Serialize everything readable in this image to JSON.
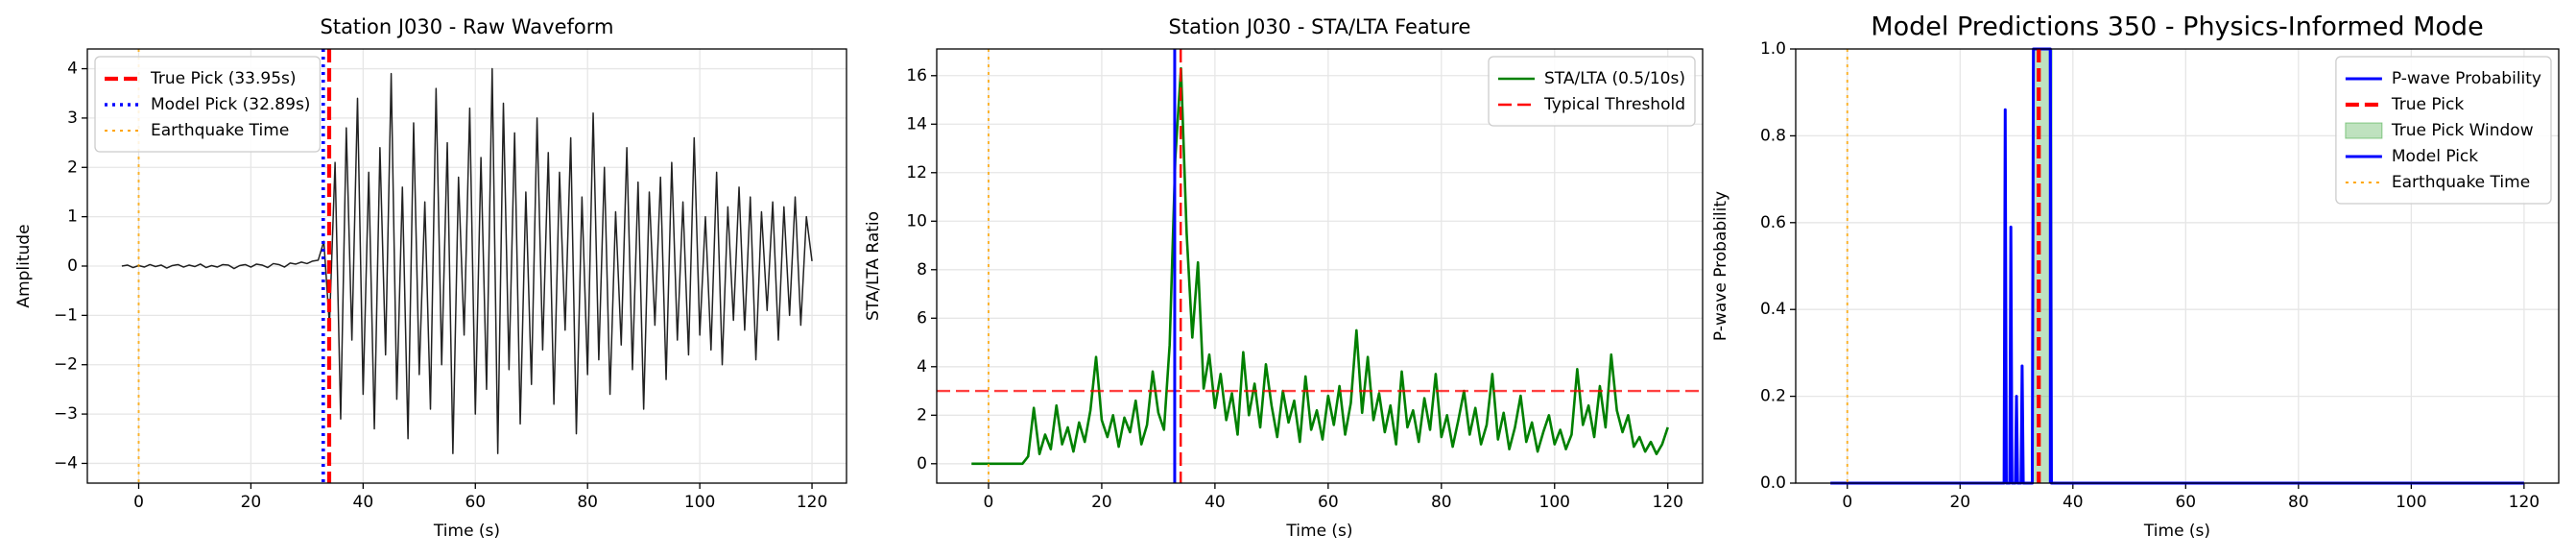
{
  "chart_data": [
    {
      "type": "line",
      "title": "Station J030 - Raw Waveform",
      "xlabel": "Time (s)",
      "ylabel": "Amplitude",
      "x": [
        -3,
        -2,
        -1,
        0,
        1,
        2,
        3,
        4,
        5,
        6,
        7,
        8,
        9,
        10,
        11,
        12,
        13,
        14,
        15,
        16,
        17,
        18,
        19,
        20,
        21,
        22,
        23,
        24,
        25,
        26,
        27,
        28,
        29,
        30,
        31,
        32,
        33,
        34,
        35,
        36,
        37,
        38,
        39,
        40,
        41,
        42,
        43,
        44,
        45,
        46,
        47,
        48,
        49,
        50,
        51,
        52,
        53,
        54,
        55,
        56,
        57,
        58,
        59,
        60,
        61,
        62,
        63,
        64,
        65,
        66,
        67,
        68,
        69,
        70,
        71,
        72,
        73,
        74,
        75,
        76,
        77,
        78,
        79,
        80,
        81,
        82,
        83,
        84,
        85,
        86,
        87,
        88,
        89,
        90,
        91,
        92,
        93,
        94,
        95,
        96,
        97,
        98,
        99,
        100,
        101,
        102,
        103,
        104,
        105,
        106,
        107,
        108,
        109,
        110,
        111,
        112,
        113,
        114,
        115,
        116,
        117,
        118,
        119,
        120
      ],
      "series": [
        {
          "color": "#222222",
          "values": [
            0,
            0.02,
            -0.03,
            0.01,
            -0.02,
            0.03,
            -0.01,
            0.02,
            -0.04,
            0.01,
            0.03,
            -0.02,
            0.02,
            -0.01,
            0.04,
            -0.03,
            0.01,
            -0.02,
            0.03,
            0.02,
            -0.05,
            0.01,
            0.03,
            -0.02,
            0.04,
            0.02,
            -0.03,
            0.05,
            0.03,
            -0.02,
            0.06,
            0.04,
            0.08,
            0.05,
            0.1,
            0.12,
            0.5,
            -1.2,
            2.1,
            -3.1,
            2.8,
            -1.5,
            3.4,
            -2.6,
            1.9,
            -3.3,
            2.4,
            -1.8,
            3.9,
            -2.7,
            1.6,
            -3.5,
            2.9,
            -2.2,
            1.3,
            -2.9,
            3.6,
            -2.0,
            2.5,
            -3.8,
            1.8,
            -1.4,
            3.2,
            -3.0,
            2.2,
            -2.5,
            4.0,
            -3.8,
            3.3,
            -2.1,
            2.7,
            -3.2,
            1.5,
            -2.4,
            3.0,
            -1.7,
            2.3,
            -2.8,
            1.9,
            -1.3,
            2.6,
            -3.4,
            1.4,
            -2.2,
            3.1,
            -1.9,
            2.0,
            -2.6,
            1.1,
            -1.6,
            2.4,
            -2.1,
            1.7,
            -2.9,
            1.5,
            -1.2,
            1.8,
            -2.3,
            2.1,
            -1.5,
            1.3,
            -1.8,
            2.6,
            -1.4,
            1.0,
            -1.7,
            1.9,
            -2.0,
            1.2,
            -1.1,
            1.6,
            -1.3,
            1.4,
            -1.9,
            1.1,
            -0.9,
            1.3,
            -1.5,
            1.2,
            -1.0,
            1.4,
            -1.2,
            1.0,
            0.1
          ],
          "style": "solid"
        }
      ],
      "references": [
        {
          "kind": "vline",
          "name": "True Pick (33.95s)",
          "x": 33.95,
          "color": "#ff0000",
          "style": "dashed"
        },
        {
          "kind": "vline",
          "name": "Model Pick (32.89s)",
          "x": 32.89,
          "color": "#0000ff",
          "style": "dotted"
        },
        {
          "kind": "vline",
          "name": "Earthquake Time",
          "x": 0,
          "color": "#ffa500",
          "style": "dotted"
        }
      ],
      "xlim": [
        -9.15,
        126.15
      ],
      "ylim": [
        -4.4,
        4.4
      ],
      "xticks": [
        0,
        20,
        40,
        60,
        80,
        100,
        120
      ],
      "yticks": [
        {
          "value": -4,
          "label": "−4"
        },
        {
          "value": -3,
          "label": "−3"
        },
        {
          "value": -2,
          "label": "−2"
        },
        {
          "value": -1,
          "label": "−1"
        },
        0,
        1,
        2,
        3,
        4
      ],
      "grid": true,
      "legend": "upper-left"
    },
    {
      "type": "line",
      "title": "Station J030 - STA/LTA Feature",
      "xlabel": "Time (s)",
      "ylabel": "STA/LTA Ratio",
      "x": [
        -3,
        -2,
        -1,
        0,
        1,
        2,
        3,
        4,
        5,
        6,
        7,
        8,
        9,
        10,
        11,
        12,
        13,
        14,
        15,
        16,
        17,
        18,
        19,
        20,
        21,
        22,
        23,
        24,
        25,
        26,
        27,
        28,
        29,
        30,
        31,
        32,
        33,
        34,
        35,
        36,
        37,
        38,
        39,
        40,
        41,
        42,
        43,
        44,
        45,
        46,
        47,
        48,
        49,
        50,
        51,
        52,
        53,
        54,
        55,
        56,
        57,
        58,
        59,
        60,
        61,
        62,
        63,
        64,
        65,
        66,
        67,
        68,
        69,
        70,
        71,
        72,
        73,
        74,
        75,
        76,
        77,
        78,
        79,
        80,
        81,
        82,
        83,
        84,
        85,
        86,
        87,
        88,
        89,
        90,
        91,
        92,
        93,
        94,
        95,
        96,
        97,
        98,
        99,
        100,
        101,
        102,
        103,
        104,
        105,
        106,
        107,
        108,
        109,
        110,
        111,
        112,
        113,
        114,
        115,
        116,
        117,
        118,
        119,
        120
      ],
      "series": [
        {
          "name": "STA/LTA (0.5/10s)",
          "color": "#008000",
          "style": "solid",
          "values": [
            0,
            0,
            0,
            0,
            0,
            0,
            0,
            0,
            0,
            0,
            0.3,
            2.3,
            0.4,
            1.2,
            0.6,
            2.4,
            0.8,
            1.5,
            0.5,
            1.7,
            0.9,
            2.2,
            4.4,
            1.8,
            1.1,
            2.0,
            0.7,
            1.9,
            1.3,
            2.6,
            0.8,
            1.6,
            3.8,
            2.1,
            1.4,
            4.9,
            12.6,
            16.3,
            9.5,
            5.2,
            8.3,
            3.1,
            4.5,
            2.3,
            3.7,
            1.8,
            2.9,
            1.2,
            4.6,
            2.0,
            3.3,
            1.5,
            4.1,
            2.4,
            1.1,
            3.0,
            1.7,
            2.6,
            0.9,
            3.6,
            1.4,
            2.2,
            1.0,
            2.8,
            1.6,
            3.2,
            1.2,
            2.5,
            5.5,
            2.1,
            4.4,
            1.8,
            2.9,
            1.3,
            2.4,
            0.8,
            3.8,
            1.5,
            2.2,
            0.9,
            2.7,
            1.4,
            3.7,
            1.1,
            2.0,
            0.7,
            1.8,
            3.0,
            1.2,
            2.3,
            0.8,
            1.6,
            3.7,
            1.0,
            2.1,
            0.6,
            1.5,
            2.8,
            0.9,
            1.7,
            0.5,
            1.3,
            2.0,
            0.8,
            1.4,
            0.6,
            1.2,
            3.9,
            1.6,
            2.4,
            1.1,
            3.2,
            1.5,
            4.5,
            2.2,
            1.3,
            2.0,
            0.7,
            1.1,
            0.5,
            0.9,
            0.4,
            0.8,
            1.5
          ]
        }
      ],
      "references": [
        {
          "kind": "hline",
          "name": "Typical Threshold",
          "y": 3,
          "color": "#ff0000",
          "style": "dashed"
        },
        {
          "kind": "vline",
          "x": 0,
          "color": "#ffa500",
          "style": "dotted"
        },
        {
          "kind": "vline",
          "x": 33.95,
          "color": "#ff0000",
          "style": "dashed"
        },
        {
          "kind": "vline",
          "x": 32.89,
          "color": "#0000ff",
          "style": "solid"
        }
      ],
      "xlim": [
        -9.15,
        126.15
      ],
      "ylim": [
        -0.8,
        17.1
      ],
      "xticks": [
        0,
        20,
        40,
        60,
        80,
        100,
        120
      ],
      "yticks": [
        0,
        2,
        4,
        6,
        8,
        10,
        12,
        14,
        16
      ],
      "grid": true,
      "legend": "upper-right"
    },
    {
      "type": "line",
      "title": "Model Predictions 350 - Physics-Informed Mode",
      "xlabel": "Time (s)",
      "ylabel": "P-wave Probability",
      "x": [
        -3,
        27.8,
        28,
        28.2,
        28.8,
        29,
        29.2,
        29.8,
        30,
        30.2,
        30.8,
        31,
        31.2,
        32.8,
        33,
        34,
        35,
        36,
        36.2,
        120
      ],
      "series": [
        {
          "name": "P-wave Probability",
          "color": "#0000ff",
          "style": "solid",
          "values": [
            0,
            0,
            0.86,
            0,
            0,
            0.59,
            0,
            0,
            0.2,
            0,
            0,
            0.27,
            0,
            0,
            1,
            1,
            1,
            1,
            0,
            0
          ]
        }
      ],
      "references": [
        {
          "kind": "vline",
          "name": "True Pick",
          "x": 33.95,
          "color": "#ff0000",
          "style": "dashed"
        },
        {
          "kind": "span",
          "name": "True Pick Window",
          "xrange": [
            32.95,
            36.45
          ],
          "color": "#2ca02c"
        },
        {
          "kind": "vline",
          "name": "Model Pick",
          "x": 36,
          "color": "#0000ff",
          "style": "solid"
        },
        {
          "kind": "vline",
          "name": "Earthquake Time",
          "x": 0,
          "color": "#ffa500",
          "style": "dotted"
        }
      ],
      "xlim": [
        -9.15,
        126.15
      ],
      "ylim": [
        0,
        1
      ],
      "xticks": [
        0,
        20,
        40,
        60,
        80,
        100,
        120
      ],
      "yticks": [
        {
          "value": 0,
          "label": "0.0"
        },
        0.2,
        0.4,
        0.6,
        0.8,
        {
          "value": 1,
          "label": "1.0"
        }
      ],
      "grid": true,
      "legend": "upper-right"
    }
  ]
}
